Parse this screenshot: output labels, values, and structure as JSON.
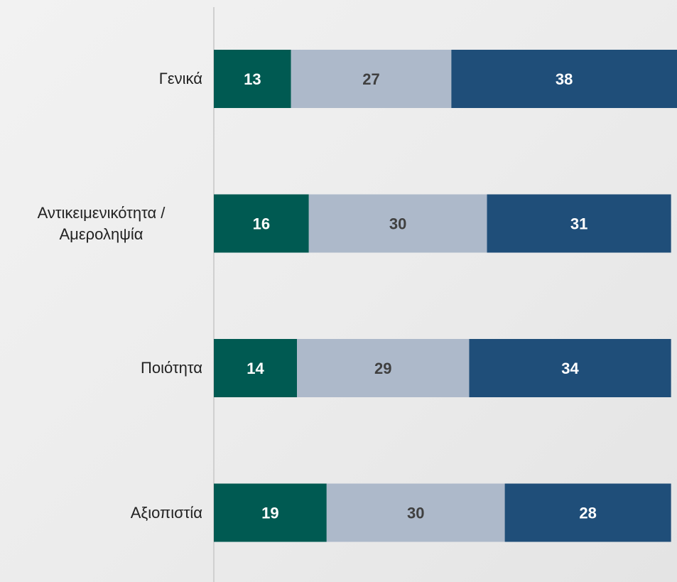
{
  "chart_data": {
    "type": "stacked-bar-horizontal",
    "categories": [
      "Γενικά",
      "Αντικειμενικότητα / Αμεροληψία",
      "Ποιότητα",
      "Αξιοπιστία"
    ],
    "series": [
      {
        "color": "#005a52",
        "label_color": "#ffffff",
        "values": [
          13,
          16,
          14,
          19
        ]
      },
      {
        "color": "#adb9ca",
        "label_color": "#404040",
        "values": [
          27,
          30,
          29,
          30
        ]
      },
      {
        "color": "#1f4e79",
        "label_color": "#ffffff",
        "values": [
          38,
          31,
          34,
          28
        ]
      }
    ],
    "xlim": [
      0,
      78
    ]
  }
}
